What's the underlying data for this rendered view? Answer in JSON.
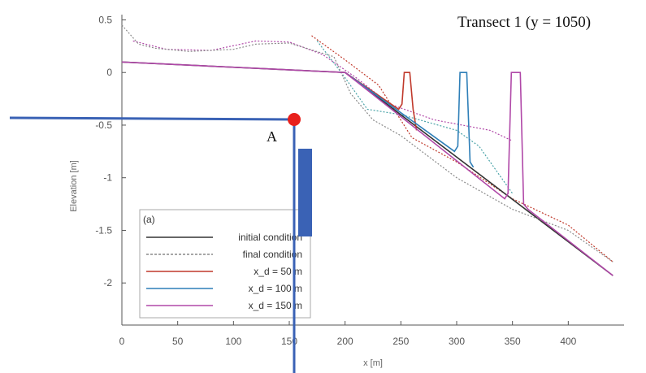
{
  "chart_data": {
    "type": "line",
    "title": "Transect 1 (y = 1050)",
    "panel_label": "(a)",
    "xlabel": "x [m]",
    "ylabel": "Elevation [m]",
    "xlim": [
      0,
      450
    ],
    "ylim": [
      -2.4,
      0.55
    ],
    "xticks": [
      0,
      50,
      100,
      150,
      200,
      250,
      300,
      350,
      400
    ],
    "yticks": [
      0.5,
      0,
      -0.5,
      -1,
      -1.5,
      -2
    ],
    "ytick_labels": [
      "0.5",
      "0",
      "-0.5",
      "-1",
      "-1.5",
      "-2"
    ],
    "legend_position": "bottom-left",
    "series": [
      {
        "name": "initial condition",
        "color": "#333333",
        "style": "solid",
        "x": [
          0,
          200,
          440
        ],
        "y": [
          0.1,
          0.0,
          -1.93
        ]
      },
      {
        "name": "final condition",
        "color": "#8a8a8a",
        "style": "dotted",
        "x": [
          0,
          15,
          30,
          60,
          100,
          120,
          150,
          190,
          205,
          225,
          250,
          300,
          350,
          400,
          440
        ],
        "y": [
          0.45,
          0.27,
          0.23,
          0.2,
          0.22,
          0.27,
          0.28,
          0.15,
          -0.2,
          -0.45,
          -0.6,
          -1.0,
          -1.3,
          -1.5,
          -1.8
        ]
      },
      {
        "name": "x_d = 50 m",
        "color": "#c0392b",
        "style": "solid",
        "x": [
          200,
          248,
          251,
          253,
          258,
          261,
          264
        ],
        "y": [
          0.0,
          -0.35,
          -0.3,
          0.0,
          0.0,
          -0.35,
          -0.55
        ]
      },
      {
        "name": "x_d = 100 m",
        "color": "#2e7fb8",
        "style": "solid",
        "x": [
          200,
          298,
          301,
          303,
          309,
          312,
          315
        ],
        "y": [
          0.0,
          -0.75,
          -0.7,
          0.0,
          0.0,
          -0.85,
          -0.9
        ]
      },
      {
        "name": "x_d = 150 m",
        "color": "#b048a8",
        "style": "solid",
        "x": [
          0,
          200,
          343,
          346,
          349,
          357,
          360,
          364,
          440
        ],
        "y": [
          0.1,
          0.0,
          -1.2,
          -1.15,
          0.0,
          0.0,
          -1.25,
          -1.3,
          -1.93
        ]
      }
    ],
    "extra_dotted": [
      {
        "color": "#c0392b",
        "x": [
          170,
          200,
          230,
          260,
          300,
          350,
          400,
          440
        ],
        "y": [
          0.35,
          0.12,
          -0.12,
          -0.62,
          -0.85,
          -1.2,
          -1.45,
          -1.8
        ]
      },
      {
        "color": "#4aa3a8",
        "x": [
          175,
          200,
          220,
          250,
          300,
          320,
          350
        ],
        "y": [
          0.3,
          -0.05,
          -0.35,
          -0.4,
          -0.55,
          -0.7,
          -1.15
        ]
      },
      {
        "color": "#b048a8",
        "x": [
          10,
          40,
          80,
          120,
          150,
          180,
          210,
          240,
          280,
          330,
          350
        ],
        "y": [
          0.3,
          0.22,
          0.21,
          0.3,
          0.29,
          0.17,
          -0.05,
          -0.3,
          -0.45,
          -0.55,
          -0.65
        ]
      }
    ]
  },
  "legend": {
    "panel": "(a)",
    "items": [
      {
        "label": "initial condition",
        "color": "#333333"
      },
      {
        "label": "final condition",
        "color": "#8a8a8a"
      },
      {
        "label": "x_d = 50 m",
        "color": "#c0392b"
      },
      {
        "label": "x_d = 100 m",
        "color": "#2e7fb8"
      },
      {
        "label": "x_d = 150 m",
        "color": "#b048a8"
      }
    ]
  },
  "annotation": {
    "point_label": "A",
    "point_color": "#e8201c",
    "line_color": "#3a62b5"
  }
}
